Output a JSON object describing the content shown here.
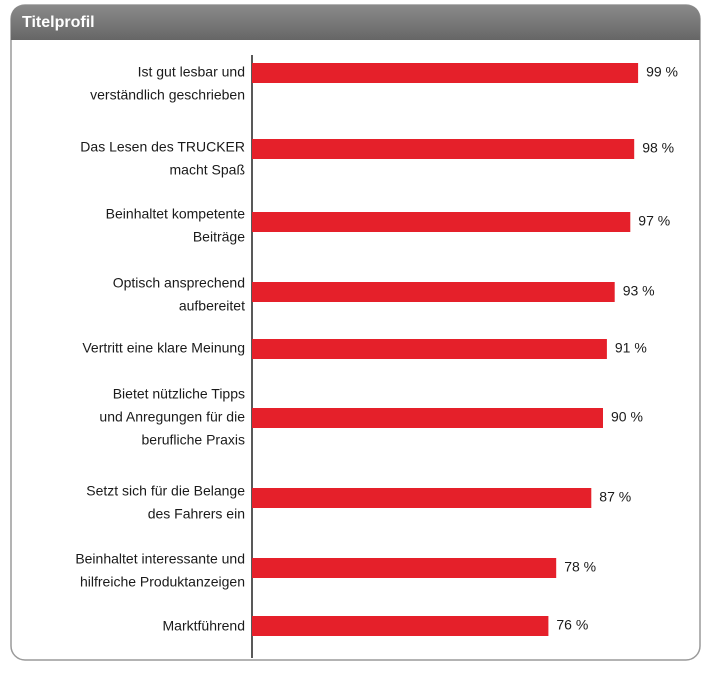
{
  "chart_data": {
    "type": "hbar",
    "title": "Titelprofil",
    "categories": [
      [
        "Ist gut lesbar und",
        "verständlich geschrieben"
      ],
      [
        "Das Lesen des TRUCKER",
        "macht Spaß"
      ],
      [
        "Beinhaltet kompetente",
        "Beiträge"
      ],
      [
        "Optisch ansprechend",
        "aufbereitet"
      ],
      [
        "Vertritt eine klare Meinung"
      ],
      [
        "Bietet nützliche Tipps",
        "und Anregungen für die",
        "berufliche Praxis"
      ],
      [
        "Setzt sich für die Belange",
        "des Fahrers ein"
      ],
      [
        "Beinhaltet interessante und",
        "hilfreiche Produktanzeigen"
      ],
      [
        "Marktführend"
      ]
    ],
    "values": [
      99,
      98,
      97,
      93,
      91,
      90,
      87,
      78,
      76
    ],
    "value_labels": [
      "99 %",
      "98 %",
      "97 %",
      "93 %",
      "91 %",
      "90 %",
      "87 %",
      "78 %",
      "76 %"
    ],
    "color": "#e5202a",
    "xlim": [
      0,
      100
    ]
  }
}
